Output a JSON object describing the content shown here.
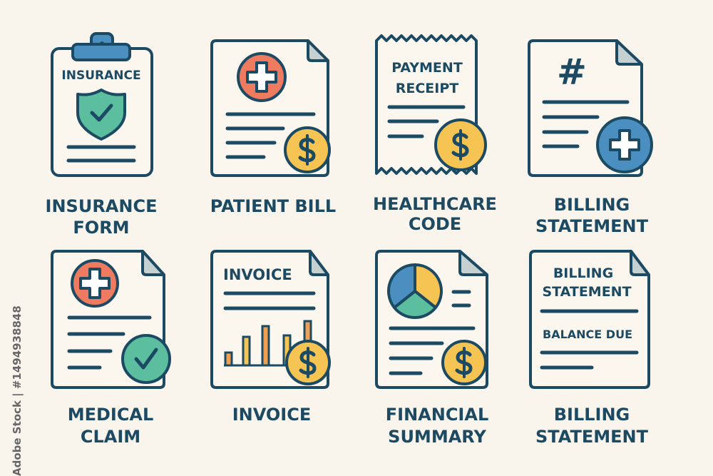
{
  "colors": {
    "background": "#faf5ec",
    "outline": "#1d4a63",
    "red": "#ee7a5f",
    "yellow": "#f5c453",
    "teal": "#5bbf9f",
    "blue": "#4a8fbf",
    "orange": "#f0a050",
    "fold": "#c5d0d0"
  },
  "icons": [
    {
      "label_lines": [
        "INSURANCE",
        "FORM"
      ],
      "inner_text": [
        "INSURANCE"
      ],
      "icon": "clipboard-shield-check-icon"
    },
    {
      "label_lines": [
        "PATIENT BILL"
      ],
      "icon": "document-medical-cross-dollar-icon"
    },
    {
      "label_lines": [
        "HEALTHCARE",
        "CODE"
      ],
      "inner_text": [
        "PAYMENT",
        "RECEIPT"
      ],
      "icon": "receipt-dollar-icon"
    },
    {
      "label_lines": [
        "BILLING",
        "STATEMENT"
      ],
      "inner_text": [
        "#"
      ],
      "icon": "document-hash-plus-icon"
    },
    {
      "label_lines": [
        "MEDICAL",
        "CLAIM"
      ],
      "icon": "document-cross-check-icon"
    },
    {
      "label_lines": [
        "INVOICE"
      ],
      "inner_text": [
        "INVOICE"
      ],
      "icon": "document-bar-chart-dollar-icon"
    },
    {
      "label_lines": [
        "FINANCIAL",
        "SUMMARY"
      ],
      "icon": "document-pie-chart-dollar-icon"
    },
    {
      "label_lines": [
        "BILLING",
        "STATEMENT"
      ],
      "inner_text": [
        "BILLING",
        "STATEMENT",
        "BALANCE DUE"
      ],
      "icon": "document-balance-due-icon"
    }
  ],
  "watermark": "Adobe Stock | #1494938848"
}
